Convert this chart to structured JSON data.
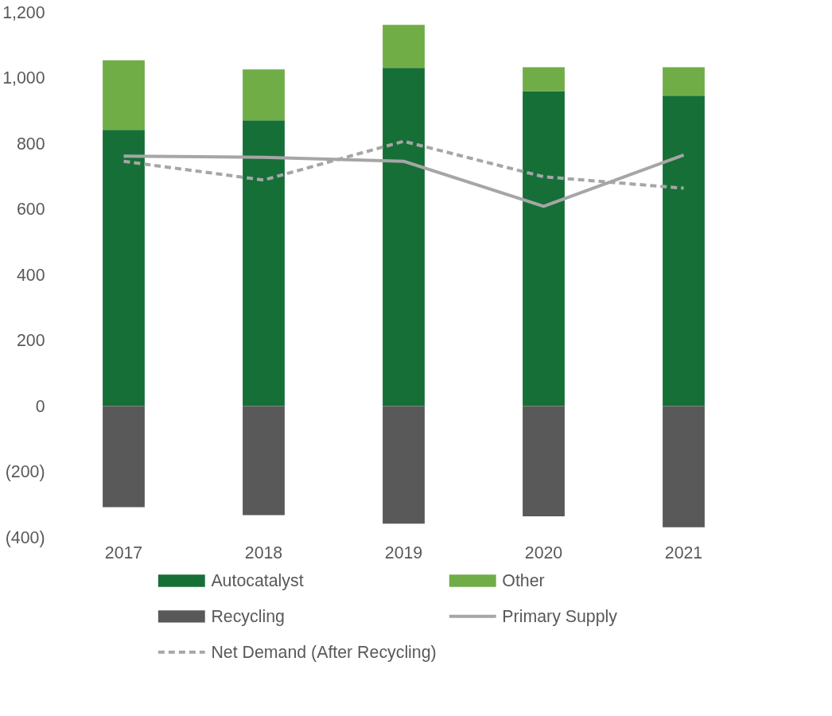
{
  "chart_data": {
    "type": "bar",
    "stacked": true,
    "categories": [
      "2017",
      "2018",
      "2019",
      "2020",
      "2021"
    ],
    "series": [
      {
        "name": "Autocatalyst",
        "color": "#166f37",
        "values": [
          842,
          871,
          1031,
          960,
          946
        ]
      },
      {
        "name": "Other",
        "color": "#70ad47",
        "values": [
          212,
          155,
          131,
          73,
          87
        ]
      },
      {
        "name": "Recycling",
        "color": "#595959",
        "values": [
          -308,
          -332,
          -358,
          -336,
          -369
        ]
      },
      {
        "name": "Primary Supply",
        "type": "line",
        "line_style": "solid",
        "color": "#a6a6a6",
        "values": [
          762,
          758,
          746,
          609,
          765
        ]
      },
      {
        "name": "Net Demand (After Recycling)",
        "type": "line",
        "line_style": "dashed",
        "color": "#a6a6a6",
        "values": [
          746,
          689,
          807,
          699,
          664
        ]
      }
    ],
    "ylim": [
      -400,
      1200
    ],
    "yticks": [
      {
        "value": -400,
        "label": "(400)"
      },
      {
        "value": -200,
        "label": "(200)"
      },
      0,
      {
        "value": 200,
        "label": "200"
      },
      {
        "value": 400,
        "label": "400"
      },
      {
        "value": 600,
        "label": "600"
      },
      {
        "value": 800,
        "label": "800"
      },
      {
        "value": 1000,
        "label": "1,000"
      },
      {
        "value": 1200,
        "label": "1,200"
      }
    ],
    "grid": false,
    "legend": "bottom"
  }
}
